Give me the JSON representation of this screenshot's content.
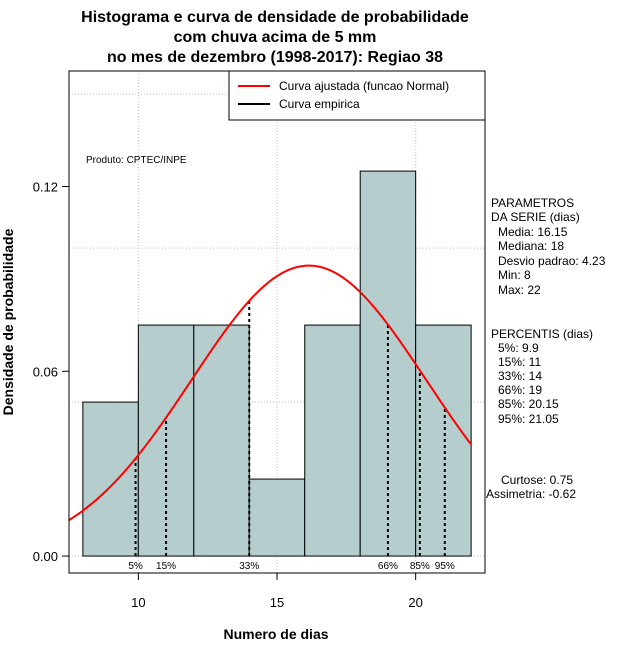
{
  "chart_data": {
    "type": "histogram",
    "title_lines": [
      "Histograma e curva de densidade de probabilidade",
      "com chuva acima de 5 mm",
      "no mes de dezembro (1998-2017): Regiao 38"
    ],
    "xlabel": "Numero de dias",
    "ylabel": "Densidade de probabilidade",
    "xlim": [
      7.5,
      22.5
    ],
    "ylim": [
      -0.0055,
      0.1575
    ],
    "x_ticks": [
      10,
      15,
      20
    ],
    "y_ticks": [
      0.0,
      0.06,
      0.12
    ],
    "x_tick_labels": [
      "10",
      "15",
      "20"
    ],
    "y_tick_labels": [
      "0.00",
      "0.06",
      "0.12"
    ],
    "bins": [
      {
        "start": 8,
        "end": 10,
        "density": 0.05
      },
      {
        "start": 10,
        "end": 12,
        "density": 0.075
      },
      {
        "start": 12,
        "end": 14,
        "density": 0.075
      },
      {
        "start": 14,
        "end": 16,
        "density": 0.025
      },
      {
        "start": 16,
        "end": 18,
        "density": 0.075
      },
      {
        "start": 18,
        "end": 20,
        "density": 0.125
      },
      {
        "start": 20,
        "end": 22,
        "density": 0.075
      }
    ],
    "normal_curve": {
      "mean": 16.15,
      "sd": 4.23,
      "x_from": 7.5,
      "x_to": 22.0
    },
    "percentile_lines": [
      {
        "label": "5%",
        "value": 9.9
      },
      {
        "label": "15%",
        "value": 11
      },
      {
        "label": "33%",
        "value": 14
      },
      {
        "label": "66%",
        "value": 19
      },
      {
        "label": "85%",
        "value": 20.15
      },
      {
        "label": "95%",
        "value": 21.05
      }
    ],
    "legend": [
      {
        "label": "Curva ajustada (funcao Normal)",
        "color": "#ff0000"
      },
      {
        "label": "Curva empirica",
        "color": "#000000"
      }
    ],
    "legend_position": "top-right",
    "grid": true,
    "colors": {
      "bar_fill": "#b5cdcc",
      "curve": "#ff0000",
      "grid": "#bfbfbf"
    }
  },
  "annotations": {
    "produto": "Produto: CPTEC/INPE",
    "parametros": [
      "PARAMETROS",
      "DA SERIE (dias)",
      "Media: 16.15",
      "Mediana: 18",
      "Desvio padrao: 4.23",
      "Min: 8",
      "Max: 22"
    ],
    "percentis": [
      "PERCENTIS (dias)",
      "5%: 9.9",
      "15%: 11",
      "33%: 14",
      "66%: 19",
      "85%: 20.15",
      "95%: 21.05"
    ],
    "stats": [
      "Curtose: 0.75",
      "Assimetria: -0.62"
    ]
  }
}
